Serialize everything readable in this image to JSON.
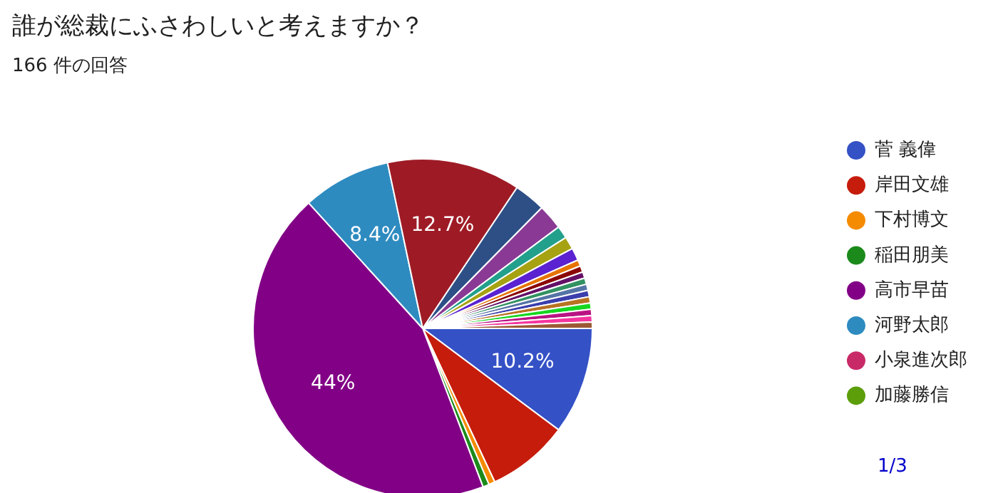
{
  "chart_data": {
    "type": "pie",
    "title": "誰が総裁にふさわしいと考えますか？",
    "subtitle": "166 件の回答",
    "categories": [
      "菅 義偉",
      "岸田文雄",
      "下村博文",
      "稲田朋美",
      "高市早苗",
      "河野太郎",
      "小泉進次郎",
      "加藤勝信",
      null,
      null,
      null,
      null,
      null,
      null,
      null,
      null,
      null,
      null,
      null,
      null,
      null,
      null,
      null,
      null,
      null
    ],
    "values": [
      10.2,
      7.8,
      0.6,
      0.6,
      44.0,
      8.4,
      0,
      0,
      12.7,
      3.0,
      2.4,
      1.2,
      1.2,
      1.2,
      0.6,
      0.6,
      0.6,
      0.6,
      0.6,
      0.6,
      0.6,
      0.6,
      0.6,
      0.6,
      0.6
    ],
    "colors": [
      "#3451c6",
      "#c61c0c",
      "#f58b00",
      "#1b8a1b",
      "#820086",
      "#2e8bc0",
      "#c82a67",
      "#5c9e0a",
      "#9e1b26",
      "#2d4f86",
      "#8a3a94",
      "#22a08c",
      "#a6a212",
      "#5a22d0",
      "#e67300",
      "#8b0707",
      "#651067",
      "#329262",
      "#5574a6",
      "#3b3eac",
      "#b77322",
      "#16d620",
      "#b91383",
      "#f4359e",
      "#9c5935"
    ],
    "value_labels": [
      "10.2%",
      null,
      null,
      null,
      "44%",
      "8.4%",
      null,
      null,
      "12.7%",
      null,
      null,
      null,
      null,
      null,
      null,
      null,
      null,
      null,
      null,
      null,
      null,
      null,
      null,
      null,
      null
    ],
    "legend": "right",
    "annotations": [
      "1/3"
    ]
  }
}
